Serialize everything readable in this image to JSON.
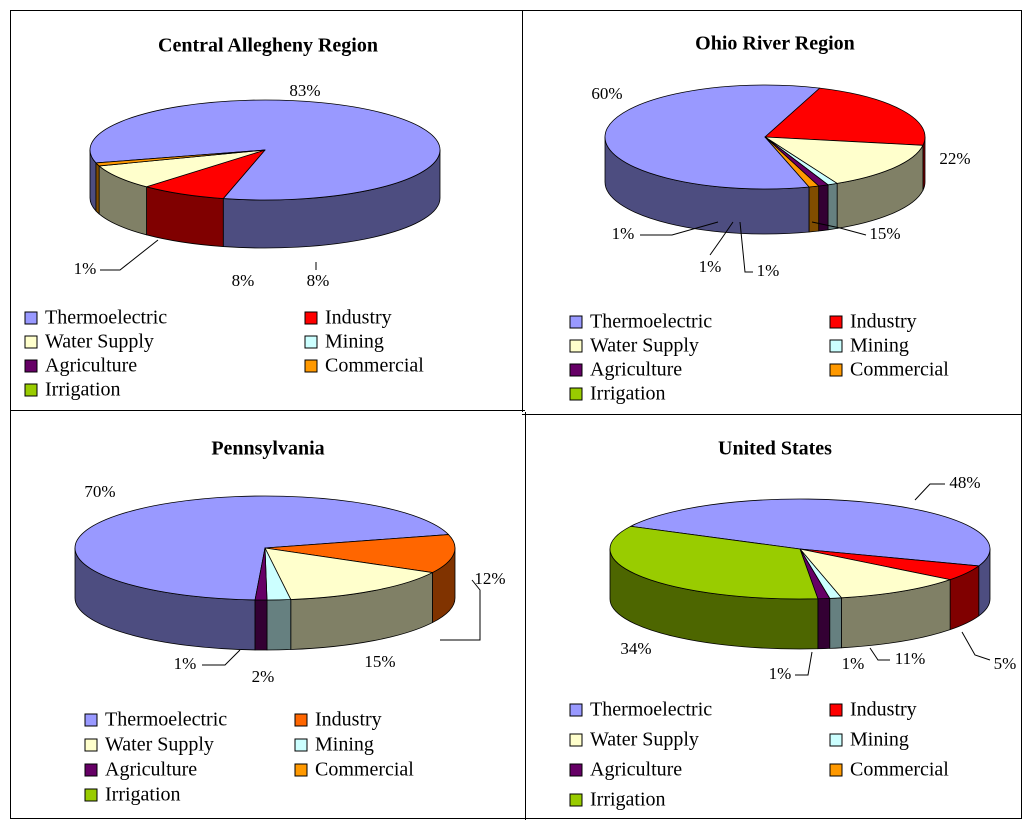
{
  "chart_data": [
    {
      "type": "pie",
      "title": "Central Allegheny Region",
      "categories": [
        "Thermoelectric",
        "Industry",
        "Water Supply",
        "Mining",
        "Agriculture",
        "Commercial",
        "Irrigation"
      ],
      "values": [
        83,
        8,
        8,
        0,
        0,
        1,
        0
      ],
      "value_labels": [
        "83%",
        "8%",
        "8%",
        null,
        null,
        "1%",
        null
      ],
      "colors": [
        "#9999ff",
        "#ff0000",
        "#ffffcc",
        "#ccffff",
        "#660066",
        "#ff9900",
        "#99cc00"
      ]
    },
    {
      "type": "pie",
      "title": "Ohio River Region",
      "categories": [
        "Thermoelectric",
        "Industry",
        "Water Supply",
        "Mining",
        "Agriculture",
        "Commercial",
        "Irrigation"
      ],
      "values": [
        60,
        22,
        15,
        1,
        1,
        1,
        0
      ],
      "value_labels": [
        "60%",
        "22%",
        "15%",
        "1%",
        "1%",
        "1%",
        null
      ],
      "colors": [
        "#9999ff",
        "#ff0000",
        "#ffffcc",
        "#ccffff",
        "#660066",
        "#ff9900",
        "#99cc00"
      ]
    },
    {
      "type": "pie",
      "title": "Pennsylvania",
      "categories": [
        "Thermoelectric",
        "Industry",
        "Water Supply",
        "Mining",
        "Agriculture",
        "Commercial",
        "Irrigation"
      ],
      "values": [
        70,
        12,
        15,
        2,
        1,
        0,
        0
      ],
      "value_labels": [
        "70%",
        "12%",
        "15%",
        "2%",
        "1%",
        null,
        null
      ],
      "colors": [
        "#9999ff",
        "#ff6600",
        "#ffffcc",
        "#ccffff",
        "#660066",
        "#ff9900",
        "#99cc00"
      ]
    },
    {
      "type": "pie",
      "title": "United States",
      "categories": [
        "Thermoelectric",
        "Industry",
        "Water Supply",
        "Mining",
        "Agriculture",
        "Commercial",
        "Irrigation"
      ],
      "values": [
        48,
        5,
        11,
        1,
        1,
        0,
        34
      ],
      "value_labels": [
        "48%",
        "5%",
        "11%",
        "1%",
        "1%",
        null,
        "34%"
      ],
      "colors": [
        "#9999ff",
        "#ff0000",
        "#ffffcc",
        "#ccffff",
        "#660066",
        "#ff9900",
        "#99cc00"
      ]
    }
  ]
}
